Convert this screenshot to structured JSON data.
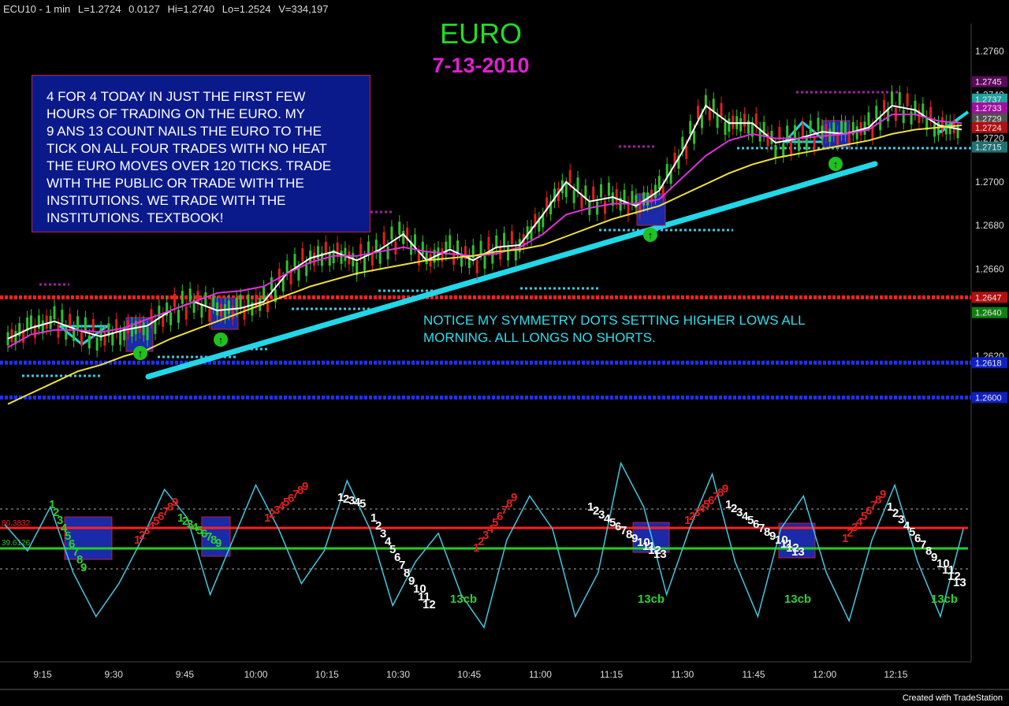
{
  "header": {
    "symbol": "ECU10 - 1 min",
    "last": "L=1.2724",
    "change": "0.0127",
    "high": "Hi=1.2740",
    "low": "Lo=1.2524",
    "volume": "V=334,197"
  },
  "title": "EURO",
  "subtitle": "7-13-2010",
  "note_box": {
    "lines": [
      "4 FOR 4 TODAY IN JUST THE FIRST FEW",
      "HOURS OF TRADING ON THE EURO. MY",
      "9 ANS 13 COUNT NAILS THE EURO TO THE",
      "TICK ON ALL FOUR TRADES WITH NO HEAT",
      "THE EURO MOVES OVER 120 TICKS. TRADE",
      "WITH THE PUBLIC OR TRADE WITH THE",
      "INSTITUTIONS. WE TRADE WITH THE",
      "INSTITUTIONS. TEXTBOOK!"
    ]
  },
  "symmetry_note": {
    "line1": "NOTICE MY SYMMETRY DOTS SETTING HIGHER LOWS ALL",
    "line2": "MORNING. ALL LONGS NO SHORTS."
  },
  "footer": "Created with TradeStation",
  "colors": {
    "background": "#000000",
    "price_white": "#ffffff",
    "ma_magenta": "#e030e0",
    "ma_yellow": "#f0e040",
    "trendline": "#20d8e8",
    "level_red": "#ff2020",
    "level_blue": "#2030ff",
    "oscillator": "#40c8e0",
    "count_green": "#30d030",
    "count_red": "#e02020"
  },
  "chart_data": [
    {
      "type": "line",
      "panel": "price",
      "y_ticks": [
        "1.2760",
        "1.2740",
        "1.2720",
        "1.2700",
        "1.2680",
        "1.2660",
        "1.2640",
        "1.2620"
      ],
      "ylim": [
        1.2582,
        1.2764
      ],
      "x_ticks": [
        "9:15",
        "9:30",
        "9:45",
        "10:00",
        "10:15",
        "10:30",
        "10:45",
        "11:00",
        "11:15",
        "11:30",
        "11:45",
        "12:00",
        "12:15"
      ],
      "price_labels": [
        {
          "value": "1.2745",
          "color": "#5a0a5a",
          "price": 1.2746
        },
        {
          "value": "1.2737",
          "color": "#20a0a0",
          "price": 1.2738
        },
        {
          "value": "1.2733",
          "color": "#a010a0",
          "price": 1.2734
        },
        {
          "value": "1.2729",
          "color": "#505050",
          "price": 1.2729
        },
        {
          "value": "1.2724",
          "color": "#b01010",
          "price": 1.2725
        },
        {
          "value": "1.2715",
          "color": "#207070",
          "price": 1.2716
        },
        {
          "value": "1.2647",
          "color": "#b01010",
          "price": 1.2647
        },
        {
          "value": "1.2640",
          "color": "#108010",
          "price": 1.264
        },
        {
          "value": "1.2618",
          "color": "#1020c0",
          "price": 1.2617
        },
        {
          "value": "1.2600",
          "color": "#1020c0",
          "price": 1.2601
        }
      ],
      "series": [
        {
          "name": "price",
          "values": [
            1.2628,
            1.2633,
            1.2636,
            1.2632,
            1.2629,
            1.2632,
            1.2634,
            1.2641,
            1.2645,
            1.2641,
            1.2642,
            1.2645,
            1.2658,
            1.2665,
            1.2668,
            1.2664,
            1.2669,
            1.2676,
            1.2664,
            1.2669,
            1.2664,
            1.267,
            1.2671,
            1.2685,
            1.27,
            1.2691,
            1.2693,
            1.2689,
            1.2696,
            1.2714,
            1.2735,
            1.2727,
            1.2727,
            1.2718,
            1.272,
            1.2723,
            1.2722,
            1.2725,
            1.2735,
            1.2733,
            1.2726,
            1.2724
          ]
        },
        {
          "name": "ma_fast",
          "values": [
            1.2624,
            1.263,
            1.2632,
            1.2632,
            1.2631,
            1.2633,
            1.2637,
            1.2641,
            1.2645,
            1.2649,
            1.265,
            1.2652,
            1.2658,
            1.2663,
            1.2666,
            1.2666,
            1.2668,
            1.267,
            1.2668,
            1.2667,
            1.2666,
            1.2667,
            1.267,
            1.2676,
            1.2685,
            1.2688,
            1.269,
            1.269,
            1.2692,
            1.2702,
            1.2712,
            1.2719,
            1.2722,
            1.272,
            1.272,
            1.2721,
            1.2722,
            1.2724,
            1.2731,
            1.2731,
            1.2728,
            1.2727
          ]
        },
        {
          "name": "ma_slow",
          "values": [
            1.2598,
            1.2603,
            1.2608,
            1.2613,
            1.2616,
            1.262,
            1.2623,
            1.2628,
            1.2632,
            1.2636,
            1.264,
            1.2644,
            1.2648,
            1.2652,
            1.2655,
            1.2658,
            1.266,
            1.2662,
            1.2664,
            1.2665,
            1.2666,
            1.2668,
            1.2669,
            1.2671,
            1.2675,
            1.2679,
            1.2683,
            1.2686,
            1.2689,
            1.2694,
            1.2699,
            1.2704,
            1.2708,
            1.2711,
            1.2713,
            1.2715,
            1.2717,
            1.2719,
            1.2722,
            1.2724,
            1.2725,
            1.2726
          ]
        }
      ],
      "horizontal_levels": [
        {
          "name": "red-level",
          "value": 1.2647
        },
        {
          "name": "blue-level-1",
          "value": 1.2617
        },
        {
          "name": "blue-level-2",
          "value": 1.2601
        }
      ]
    },
    {
      "type": "line",
      "panel": "oscillator",
      "level_labels": [
        {
          "value": "80.3832",
          "color": "#ff2020"
        },
        {
          "value": "39.6126",
          "color": "#20d020"
        }
      ],
      "count_labels": [
        "1",
        "2",
        "3",
        "4",
        "5",
        "6",
        "7",
        "8",
        "9",
        "10",
        "11",
        "12",
        "13",
        "13cb"
      ],
      "series": [
        {
          "name": "oscillator",
          "values": [
            62,
            50,
            70,
            40,
            20,
            35,
            55,
            78,
            65,
            30,
            55,
            80,
            60,
            35,
            50,
            82,
            60,
            25,
            45,
            58,
            30,
            15,
            55,
            75,
            60,
            20,
            40,
            90,
            70,
            30,
            60,
            85,
            45,
            20,
            60,
            75,
            40,
            18,
            55,
            80,
            45,
            20,
            60
          ]
        }
      ]
    }
  ]
}
